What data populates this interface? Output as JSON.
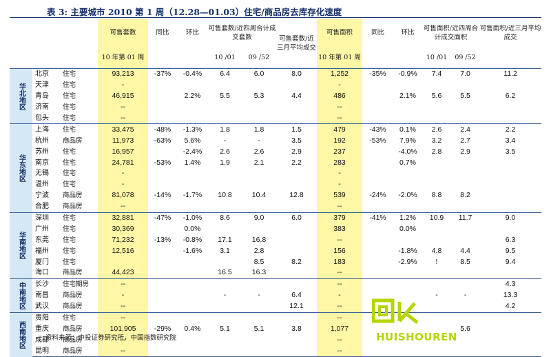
{
  "title": "表 3: 主要城市 2010 第 1 周（12.28—01.03）住宅/商品房去库存化速度",
  "header": {
    "sales_area": "可售套数",
    "yoy": "同比",
    "mom": "环比",
    "avg_deals": "可售套数/近四周合计成交套数",
    "months_left": "可售套数/近三月平均成交",
    "sales_area2": "可售面积",
    "yoy2": "同比",
    "mom2": "环比",
    "area_deals": "可售面积/近四周合计成交面积",
    "area_months": "可售面积/近三月平均成交",
    "week": "10 年第 01 周",
    "p1": "10 /01",
    "p2": "09 /52",
    "p3": "10 /01",
    "p4": "09 /52"
  },
  "regions": [
    {
      "name": "华北地区",
      "rows": [
        [
          "北京",
          "住宅",
          "93,213",
          "-37%",
          "-0.4%",
          "6.4",
          "6.0",
          "8.0",
          "1,252",
          "-35%",
          "-0.9%",
          "7.4",
          "7.0",
          "11.2"
        ],
        [
          "天津",
          "住宅",
          "-",
          "",
          "",
          "",
          "",
          "",
          "-",
          "",
          "",
          "",
          "",
          ""
        ],
        [
          "青岛",
          "住宅",
          "46,915",
          "",
          "2.2%",
          "5.5",
          "5.3",
          "4.4",
          "486",
          "",
          "2.1%",
          "5.6",
          "5.5",
          "6.2"
        ],
        [
          "济南",
          "住宅",
          "--",
          "",
          "",
          "",
          "",
          "",
          "--",
          "",
          "",
          "",
          "",
          ""
        ],
        [
          "包头",
          "住宅",
          "--",
          "",
          "",
          "",
          "",
          "",
          "--",
          "",
          "",
          "",
          "",
          ""
        ]
      ]
    },
    {
      "name": "华东地区",
      "rows": [
        [
          "上海",
          "住宅",
          "33,475",
          "-48%",
          "-1.3%",
          "1.8",
          "1.8",
          "1.5",
          "479",
          "-43%",
          "0.1%",
          "2.6",
          "2.4",
          "2.2"
        ],
        [
          "杭州",
          "商品房",
          "11,973",
          "-63%",
          "5.6%",
          "-",
          "-",
          "3.5",
          "192",
          "-53%",
          "7.9%",
          "3.2",
          "2.7",
          "3.4"
        ],
        [
          "苏州",
          "住宅",
          "16,957",
          "",
          "-2.4%",
          "2.6",
          "2.6",
          "2.9",
          "237",
          "",
          "-4.0%",
          "2.8",
          "2.9",
          "3.5"
        ],
        [
          "南京",
          "住宅",
          "24,781",
          "-53%",
          "1.4%",
          "1.9",
          "2.1",
          "2.2",
          "283",
          "",
          "0.7%",
          "",
          "",
          ""
        ],
        [
          "无锡",
          "住宅",
          "-",
          "",
          "",
          "",
          "",
          "",
          "-",
          "",
          "",
          "",
          "",
          ""
        ],
        [
          "温州",
          "住宅",
          "-",
          "",
          "",
          "",
          "",
          "",
          "-",
          "",
          "",
          "",
          "",
          ""
        ],
        [
          "宁波",
          "商品房",
          "81,078",
          "-14%",
          "-1.7%",
          "10.8",
          "10.4",
          "12.8",
          "539",
          "-24%",
          "-2.0%",
          "8.8",
          "8.2",
          ""
        ],
        [
          "合肥",
          "商品房",
          "--",
          "",
          "",
          "",
          "",
          "",
          "--",
          "",
          "",
          "",
          "",
          ""
        ]
      ]
    },
    {
      "name": "华南地区",
      "rows": [
        [
          "深圳",
          "住宅",
          "32,881",
          "-47%",
          "-1.0%",
          "8.6",
          "9.0",
          "6.0",
          "379",
          "-41%",
          "1.2%",
          "10.9",
          "11.7",
          "9.0"
        ],
        [
          "广州",
          "住宅",
          "30,369",
          "",
          "0.0%",
          "",
          "",
          "",
          "383",
          "",
          "0.0%",
          "",
          "",
          ""
        ],
        [
          "东莞",
          "住宅",
          "71,232",
          "-13%",
          "-0.8%",
          "17.1",
          "16.8",
          "",
          "--",
          "",
          "",
          "",
          "",
          "6.3"
        ],
        [
          "福州",
          "住宅",
          "12,516",
          "",
          "-1.6%",
          "3.1",
          "2.8",
          "",
          "156",
          "",
          "-1.8%",
          "4.8",
          "4.4",
          "9.5"
        ],
        [
          "厦门",
          "住宅",
          "",
          "",
          "",
          "",
          "8.5",
          "8.2",
          "183",
          "",
          "-2.9%",
          "!",
          "8.5",
          "9.4"
        ],
        [
          "海口",
          "商品房",
          "44,423",
          "",
          "",
          "16.5",
          "16.3",
          "",
          "--",
          "",
          "",
          "",
          "",
          ""
        ]
      ]
    },
    {
      "name": "中南地区",
      "rows": [
        [
          "长沙",
          "住宅期房",
          "--",
          "",
          "",
          "",
          "",
          "",
          "--",
          "",
          "",
          "",
          "",
          "4.3"
        ],
        [
          "南昌",
          "商品房",
          "-",
          "",
          "",
          "-",
          "-",
          "6.4",
          "-",
          "",
          "",
          "-",
          "-",
          "13.3"
        ],
        [
          "武汉",
          "商品房",
          "--",
          "",
          "",
          "",
          "",
          "12.1",
          "--",
          "",
          "",
          "",
          "",
          "4.2"
        ]
      ]
    },
    {
      "name": "西南地区",
      "rows": [
        [
          "贵阳",
          "住宅",
          "--",
          "",
          "",
          "",
          "",
          "",
          "--",
          "",
          "",
          "",
          "",
          ""
        ],
        [
          "重庆",
          "商品房",
          "101,905",
          "-29%",
          "0.4%",
          "5.1",
          "5.1",
          "3.8",
          "1,077",
          "",
          "",
          "",
          "5.6",
          ""
        ],
        [
          "成都",
          "商品房",
          "--",
          "",
          "",
          "",
          "",
          "",
          "--",
          "",
          "",
          "",
          "",
          ""
        ],
        [
          "昆明",
          "商品房",
          "--",
          "",
          "",
          "",
          "",
          "",
          "--",
          "",
          "",
          "",
          "",
          ""
        ]
      ]
    }
  ],
  "source": "资料来源：中投证券研究所，中国指数研究院",
  "watermark": {
    "text": "HUISHOUREN",
    "color": "#b8d400"
  }
}
